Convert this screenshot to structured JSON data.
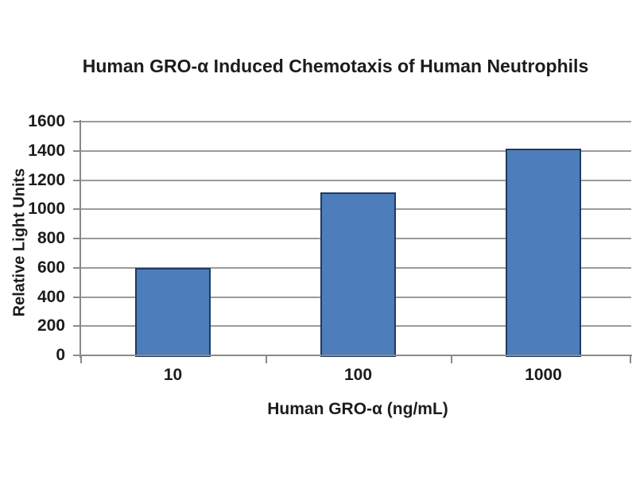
{
  "page": {
    "background": "#ffffff"
  },
  "chart_data": {
    "type": "bar",
    "title": "Human GRO-α Induced Chemotaxis of Human Neutrophils",
    "categories": [
      "10",
      "100",
      "1000"
    ],
    "values": [
      600,
      1115,
      1415
    ],
    "xlabel": "Human GRO-α (ng/mL)",
    "ylabel": "Relative Light Units",
    "ylim": [
      0,
      1600
    ],
    "ytick_step": 200,
    "ytick_labels": [
      "0",
      "200",
      "400",
      "600",
      "800",
      "1000",
      "1200",
      "1400",
      "1600"
    ],
    "grid": true,
    "legend": false,
    "colors": {
      "bar_fill": "#4d7dbb",
      "bar_border": "#1f3a60",
      "gridline": "#9b9b9b",
      "axis": "#8a8a8a",
      "text": "#1c1c1c"
    }
  }
}
